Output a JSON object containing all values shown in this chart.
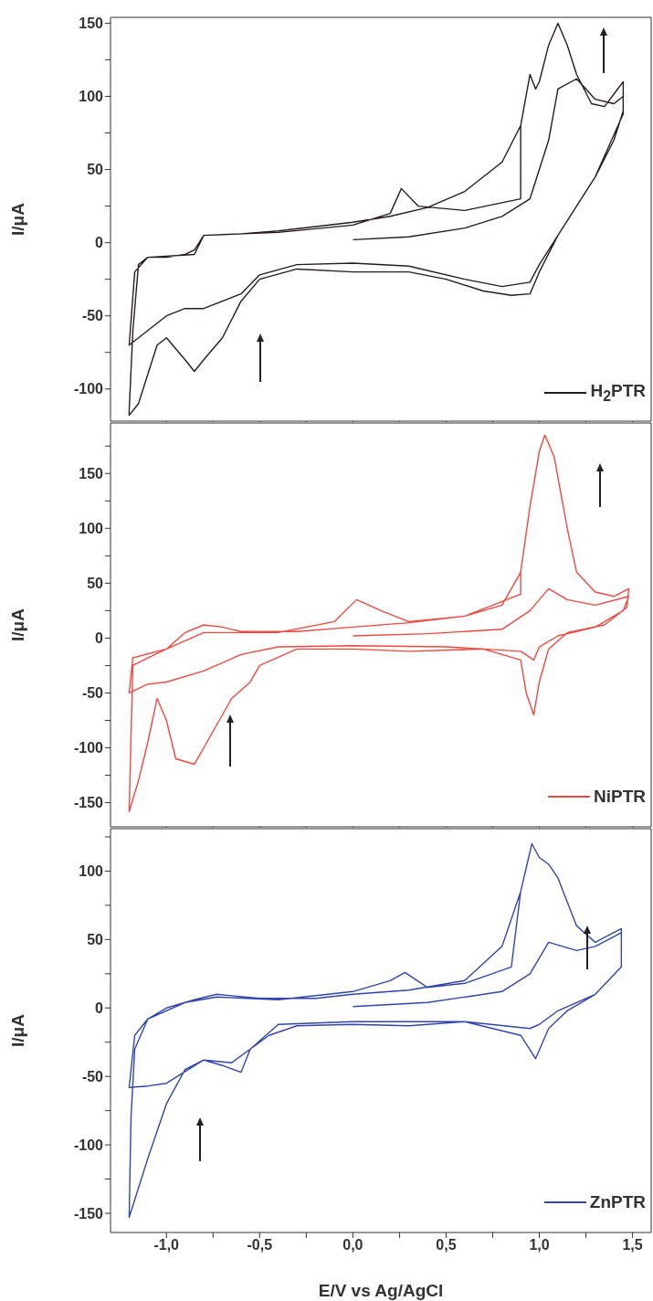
{
  "chart_data": [
    {
      "type": "line",
      "ylabel": "I/μA",
      "legend": "bottom right",
      "tick_labels": "y",
      "xlim": [
        -1.3,
        1.6
      ],
      "xticks": [
        {
          "value": -1,
          "label": null
        },
        {
          "value": -0.75,
          "label": null
        },
        {
          "value": -0.5,
          "label": null
        },
        {
          "value": -0.25,
          "label": null
        },
        {
          "value": 0,
          "label": null
        },
        {
          "value": 0.25,
          "label": null
        },
        {
          "value": 0.5,
          "label": null
        },
        {
          "value": 0.75,
          "label": null
        },
        {
          "value": 1,
          "label": null
        },
        {
          "value": 1.25,
          "label": null
        },
        {
          "value": 1.5,
          "label": null
        }
      ],
      "ylim": [
        -122,
        154
      ],
      "yticks": [
        -100,
        {
          "value": -75,
          "label": null
        },
        -50,
        {
          "value": -25,
          "label": null
        },
        0,
        {
          "value": 25,
          "label": null
        },
        50,
        {
          "value": 75,
          "label": null
        },
        100,
        {
          "value": 125,
          "label": null
        },
        150
      ],
      "series": [
        {
          "name": "H$_{2}$PTR",
          "color": "#2a1a1c",
          "x": [
            0,
            0.3,
            0.6,
            0.8,
            0.95,
            1.05,
            1.1,
            1.2,
            1.3,
            1.4,
            1.45,
            1.45,
            1.3,
            1.1,
            1.0,
            0.95,
            0.8,
            0.6,
            0.3,
            0,
            -0.3,
            -0.5,
            -0.6,
            -0.8,
            -0.9,
            -1.0,
            -1.1,
            -1.2,
            -1.17,
            -1.1,
            -0.85,
            -0.8,
            -0.4,
            0,
            0.2,
            0.26,
            0.35,
            0.6,
            0.9,
            0.9,
            0.95,
            0.98,
            1.0,
            1.05,
            1.1,
            1.15,
            1.2,
            1.28,
            1.35,
            1.42,
            1.45,
            1.45,
            1.4,
            1.3,
            1.2,
            1.1,
            1.0,
            0.95,
            0.85,
            0.7,
            0.5,
            0.3,
            0.0,
            -0.3,
            -0.5,
            -0.6,
            -0.7,
            -0.8,
            -0.85,
            -0.9,
            -1.0,
            -1.05,
            -1.1,
            -1.15,
            -1.2,
            -1.2,
            -1.18,
            -1.15,
            -1.1,
            -1.0,
            -0.9,
            -0.85,
            -0.8,
            -0.6,
            -0.4,
            -0.2,
            0,
            0.2,
            0.4,
            0.6,
            0.8,
            0.9
          ],
          "values": [
            2,
            4,
            10,
            18,
            30,
            70,
            105,
            112,
            98,
            95,
            100,
            88,
            45,
            5,
            -15,
            -27,
            -30,
            -25,
            -16,
            -14,
            -15,
            -22,
            -35,
            -45,
            -45,
            -50,
            -60,
            -70,
            -20,
            -10,
            -8,
            5,
            7,
            12,
            20,
            37,
            25,
            22,
            30,
            80,
            115,
            105,
            110,
            135,
            150,
            135,
            115,
            95,
            93,
            105,
            110,
            90,
            70,
            45,
            25,
            5,
            -20,
            -35,
            -36,
            -33,
            -25,
            -20,
            -20,
            -18,
            -25,
            -40,
            -65,
            -80,
            -88,
            -80,
            -65,
            -70,
            -90,
            -110,
            -118,
            -115,
            -60,
            -15,
            -10,
            -10,
            -8,
            -5,
            5,
            6,
            8,
            11,
            14,
            18,
            24,
            35,
            55,
            80
          ]
        }
      ]
    },
    {
      "type": "line",
      "ylabel": "I/μA",
      "legend": "bottom right",
      "tick_labels": "y",
      "xlim": [
        -1.3,
        1.6
      ],
      "xticks": [
        {
          "value": -1,
          "label": null
        },
        {
          "value": -0.75,
          "label": null
        },
        {
          "value": -0.5,
          "label": null
        },
        {
          "value": -0.25,
          "label": null
        },
        {
          "value": 0,
          "label": null
        },
        {
          "value": 0.25,
          "label": null
        },
        {
          "value": 0.5,
          "label": null
        },
        {
          "value": 0.75,
          "label": null
        },
        {
          "value": 1,
          "label": null
        },
        {
          "value": 1.25,
          "label": null
        },
        {
          "value": 1.5,
          "label": null
        }
      ],
      "ylim": [
        -172,
        196
      ],
      "yticks": [
        -150,
        {
          "value": -125,
          "label": null
        },
        -100,
        {
          "value": -75,
          "label": null
        },
        -50,
        {
          "value": -25,
          "label": null
        },
        0,
        {
          "value": 25,
          "label": null
        },
        50,
        {
          "value": 75,
          "label": null
        },
        100,
        {
          "value": 125,
          "label": null
        },
        150,
        {
          "value": 175,
          "label": null
        }
      ],
      "series": [
        {
          "name": "NiPTR",
          "color": "#f0483e",
          "x": [
            0,
            0.4,
            0.8,
            0.95,
            1.05,
            1.15,
            1.3,
            1.48,
            1.45,
            1.3,
            1.1,
            1.0,
            0.97,
            0.9,
            0.5,
            0,
            -0.4,
            -0.6,
            -0.8,
            -1.0,
            -1.1,
            -1.2,
            -1.18,
            -1.0,
            -0.8,
            -0.4,
            -0.1,
            0.02,
            0.15,
            0.3,
            0.6,
            0.9,
            0.9,
            0.95,
            1.0,
            1.03,
            1.08,
            1.15,
            1.2,
            1.3,
            1.4,
            1.48,
            1.47,
            1.35,
            1.15,
            1.05,
            1.0,
            0.97,
            0.93,
            0.9,
            0.7,
            0.3,
            0,
            -0.3,
            -0.5,
            -0.55,
            -0.65,
            -0.75,
            -0.85,
            -0.95,
            -1.0,
            -1.05,
            -1.1,
            -1.15,
            -1.2,
            -1.19,
            -1.18,
            -1.1,
            -1.0,
            -0.9,
            -0.8,
            -0.7,
            -0.6,
            -0.3,
            0,
            0.3,
            0.6,
            0.8,
            0.9
          ],
          "values": [
            2,
            4,
            8,
            25,
            45,
            35,
            30,
            38,
            25,
            10,
            2,
            -8,
            -20,
            -12,
            -8,
            -7,
            -8,
            -15,
            -30,
            -40,
            -42,
            -50,
            -18,
            -10,
            5,
            5,
            15,
            35,
            25,
            15,
            20,
            40,
            60,
            120,
            170,
            185,
            165,
            100,
            60,
            42,
            38,
            45,
            28,
            12,
            5,
            -10,
            -40,
            -70,
            -50,
            -20,
            -10,
            -12,
            -10,
            -10,
            -25,
            -40,
            -55,
            -85,
            -115,
            -110,
            -75,
            -55,
            -95,
            -130,
            -158,
            -90,
            -25,
            -18,
            -10,
            5,
            12,
            10,
            6,
            6,
            10,
            14,
            20,
            30,
            60
          ]
        }
      ]
    },
    {
      "type": "line",
      "xlabel": "E/V vs Ag/AgCl",
      "ylabel": "I/μA",
      "legend": "bottom right",
      "xlim": [
        -1.3,
        1.6
      ],
      "xticks": [
        {
          "value": -1,
          "label": "-1,0"
        },
        {
          "value": -0.75,
          "label": null
        },
        {
          "value": -0.5,
          "label": "-0,5"
        },
        {
          "value": -0.25,
          "label": null
        },
        {
          "value": 0,
          "label": "0,0"
        },
        {
          "value": 0.25,
          "label": null
        },
        {
          "value": 0.5,
          "label": "0,5"
        },
        {
          "value": 0.75,
          "label": null
        },
        {
          "value": 1,
          "label": "1,0"
        },
        {
          "value": 1.25,
          "label": null
        },
        {
          "value": 1.5,
          "label": "1,5"
        }
      ],
      "ylim": [
        -164,
        131
      ],
      "yticks": [
        -150,
        {
          "value": -125,
          "label": null
        },
        -100,
        {
          "value": -75,
          "label": null
        },
        -50,
        {
          "value": -25,
          "label": null
        },
        0,
        {
          "value": 25,
          "label": null
        },
        50,
        {
          "value": 75,
          "label": null
        },
        100,
        {
          "value": 125,
          "label": null
        }
      ],
      "series": [
        {
          "name": "ZnPTR",
          "color": "#2f46b0",
          "x": [
            0,
            0.4,
            0.8,
            0.95,
            1.05,
            1.2,
            1.3,
            1.44,
            1.44,
            1.3,
            1.1,
            1.0,
            0.95,
            0.6,
            0,
            -0.4,
            -0.55,
            -0.6,
            -0.7,
            -0.8,
            -1.0,
            -1.1,
            -1.2,
            -1.17,
            -1.1,
            -0.9,
            -0.73,
            -0.4,
            0,
            0.2,
            0.28,
            0.4,
            0.6,
            0.85,
            0.9,
            0.96,
            1.0,
            1.05,
            1.1,
            1.2,
            1.3,
            1.44,
            1.44,
            1.3,
            1.15,
            1.05,
            0.98,
            0.9,
            0.6,
            0.3,
            0,
            -0.3,
            -0.45,
            -0.55,
            -0.65,
            -0.8,
            -0.9,
            -1.0,
            -1.1,
            -1.2,
            -1.19,
            -1.17,
            -1.1,
            -1.0,
            -0.85,
            -0.73,
            -0.5,
            -0.2,
            0,
            0.3,
            0.6,
            0.8,
            0.9
          ],
          "values": [
            1,
            4,
            12,
            25,
            48,
            42,
            45,
            55,
            30,
            10,
            -2,
            -12,
            -15,
            -10,
            -10,
            -12,
            -30,
            -47,
            -42,
            -38,
            -55,
            -57,
            -58,
            -20,
            -8,
            4,
            8,
            6,
            12,
            20,
            26,
            15,
            18,
            30,
            85,
            120,
            110,
            105,
            95,
            60,
            48,
            58,
            30,
            10,
            -2,
            -15,
            -37,
            -20,
            -10,
            -13,
            -12,
            -13,
            -20,
            -30,
            -40,
            -38,
            -45,
            -70,
            -110,
            -153,
            -80,
            -30,
            -8,
            0,
            6,
            10,
            7,
            7,
            10,
            13,
            20,
            45,
            85
          ]
        }
      ]
    }
  ]
}
